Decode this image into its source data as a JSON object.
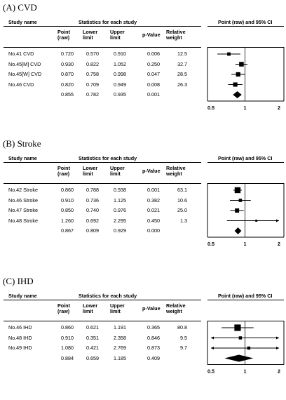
{
  "headers": {
    "study_name": "Study name",
    "statistics": "Statistics for each study",
    "point": [
      "Point",
      "(raw)"
    ],
    "lower": [
      "Lower",
      "limit"
    ],
    "upper": [
      "Upper",
      "limit"
    ],
    "pvalue": "p-Value",
    "weight": [
      "Relative",
      "weight"
    ],
    "plot_title": "Point (raw) and 95% CI"
  },
  "chart_data": [
    {
      "type": "table",
      "panel_title": "(A) CVD",
      "xlim": [
        0.5,
        2
      ],
      "xticks": [
        "0.5",
        "1",
        "2"
      ],
      "rows": [
        {
          "study": "No.41 CVD",
          "point": "0.720",
          "lower": "0.570",
          "upper": "0.910",
          "p": "0.006",
          "weight": "12.5"
        },
        {
          "study": "No.45[M] CVD",
          "point": "0.930",
          "lower": "0.822",
          "upper": "1.052",
          "p": "0.250",
          "weight": "32.7"
        },
        {
          "study": "No.45[W] CVD",
          "point": "0.870",
          "lower": "0.758",
          "upper": "0.998",
          "p": "0.047",
          "weight": "28.5"
        },
        {
          "study": "No.46 CVD",
          "point": "0.820",
          "lower": "0.709",
          "upper": "0.949",
          "p": "0.008",
          "weight": "26.3"
        }
      ],
      "summary": {
        "point": "0.855",
        "lower": "0.782",
        "upper": "0.935",
        "p": "0.001"
      }
    },
    {
      "type": "table",
      "panel_title": "(B) Stroke",
      "xlim": [
        0.5,
        2
      ],
      "xticks": [
        "0.5",
        "1",
        "2"
      ],
      "rows": [
        {
          "study": "No.42 Stroke",
          "point": "0.860",
          "lower": "0.788",
          "upper": "0.938",
          "p": "0.001",
          "weight": "63.1"
        },
        {
          "study": "No.46 Stroke",
          "point": "0.910",
          "lower": "0.736",
          "upper": "1.125",
          "p": "0.382",
          "weight": "10.6"
        },
        {
          "study": "No.47 Stroke",
          "point": "0.850",
          "lower": "0.740",
          "upper": "0.976",
          "p": "0.021",
          "weight": "25.0"
        },
        {
          "study": "No.48 Stroke",
          "point": "1.260",
          "lower": "0.692",
          "upper": "2.295",
          "p": "0.450",
          "weight": "1.3"
        }
      ],
      "summary": {
        "point": "0.867",
        "lower": "0.809",
        "upper": "0.929",
        "p": "0.000"
      }
    },
    {
      "type": "table",
      "panel_title": "(C) IHD",
      "xlim": [
        0.5,
        2
      ],
      "xticks": [
        "0.5",
        "1",
        "2"
      ],
      "rows": [
        {
          "study": "No.46 IHD",
          "point": "0.860",
          "lower": "0.621",
          "upper": "1.191",
          "p": "0.365",
          "weight": "80.8"
        },
        {
          "study": "No.48 IHD",
          "point": "0.910",
          "lower": "0.351",
          "upper": "2.358",
          "p": "0.846",
          "weight": "9.5"
        },
        {
          "study": "No.49 IHD",
          "point": "1.080",
          "lower": "0.421",
          "upper": "2.769",
          "p": "0.873",
          "weight": "9.7"
        }
      ],
      "summary": {
        "point": "0.884",
        "lower": "0.659",
        "upper": "1.185",
        "p": "0.409"
      }
    }
  ]
}
